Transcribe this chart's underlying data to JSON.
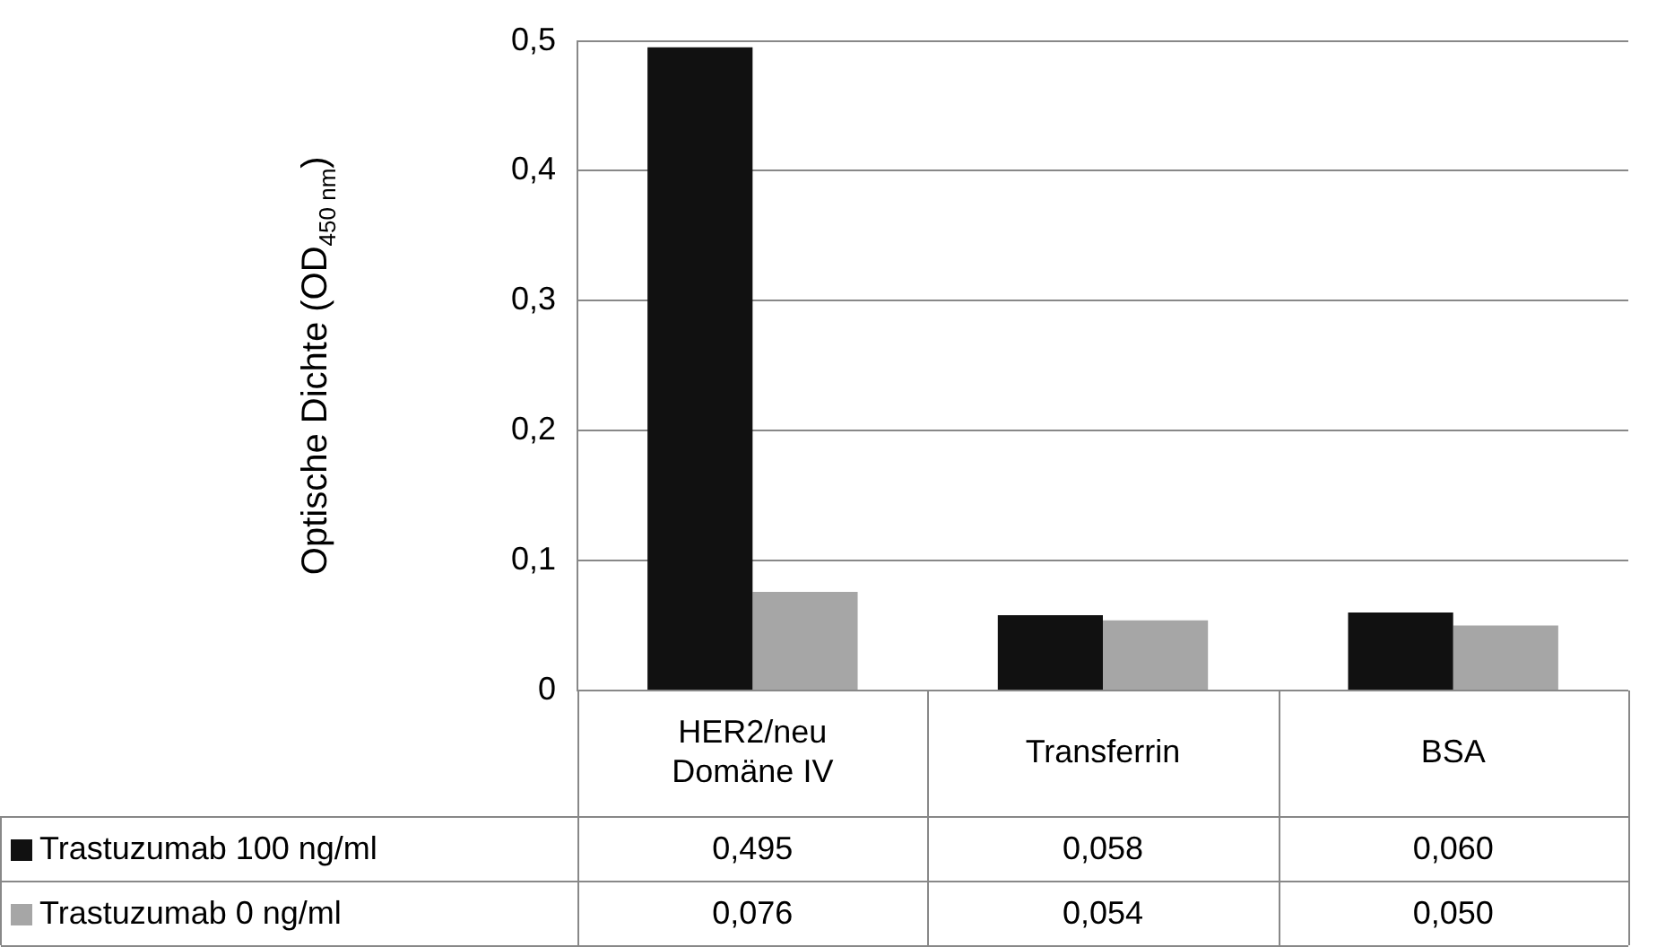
{
  "chart_data": {
    "type": "bar",
    "ylabel": "Optische Dichte (OD$_{450 nm}$)",
    "categories": [
      "HER2/neu Domäne IV",
      "Transferrin",
      "BSA"
    ],
    "series": [
      {
        "name": "Trastuzumab 100 ng/ml",
        "color": "#111111",
        "values": [
          0.495,
          0.058,
          0.06
        ],
        "value_labels": [
          "0,495",
          "0,058",
          "0,060"
        ]
      },
      {
        "name": "Trastuzumab 0 ng/ml",
        "color": "#a6a6a6",
        "values": [
          0.076,
          0.054,
          0.05
        ],
        "value_labels": [
          "0,076",
          "0,054",
          "0,050"
        ]
      }
    ],
    "ylim": [
      0,
      0.5
    ],
    "yticks": [
      {
        "value": 0,
        "label": "0"
      },
      {
        "value": 0.1,
        "label": "0,1"
      },
      {
        "value": 0.2,
        "label": "0,2"
      },
      {
        "value": 0.3,
        "label": "0,3"
      },
      {
        "value": 0.4,
        "label": "0,4"
      },
      {
        "value": 0.5,
        "label": "0,5"
      }
    ],
    "grid": "y",
    "legend": "bottom left"
  }
}
